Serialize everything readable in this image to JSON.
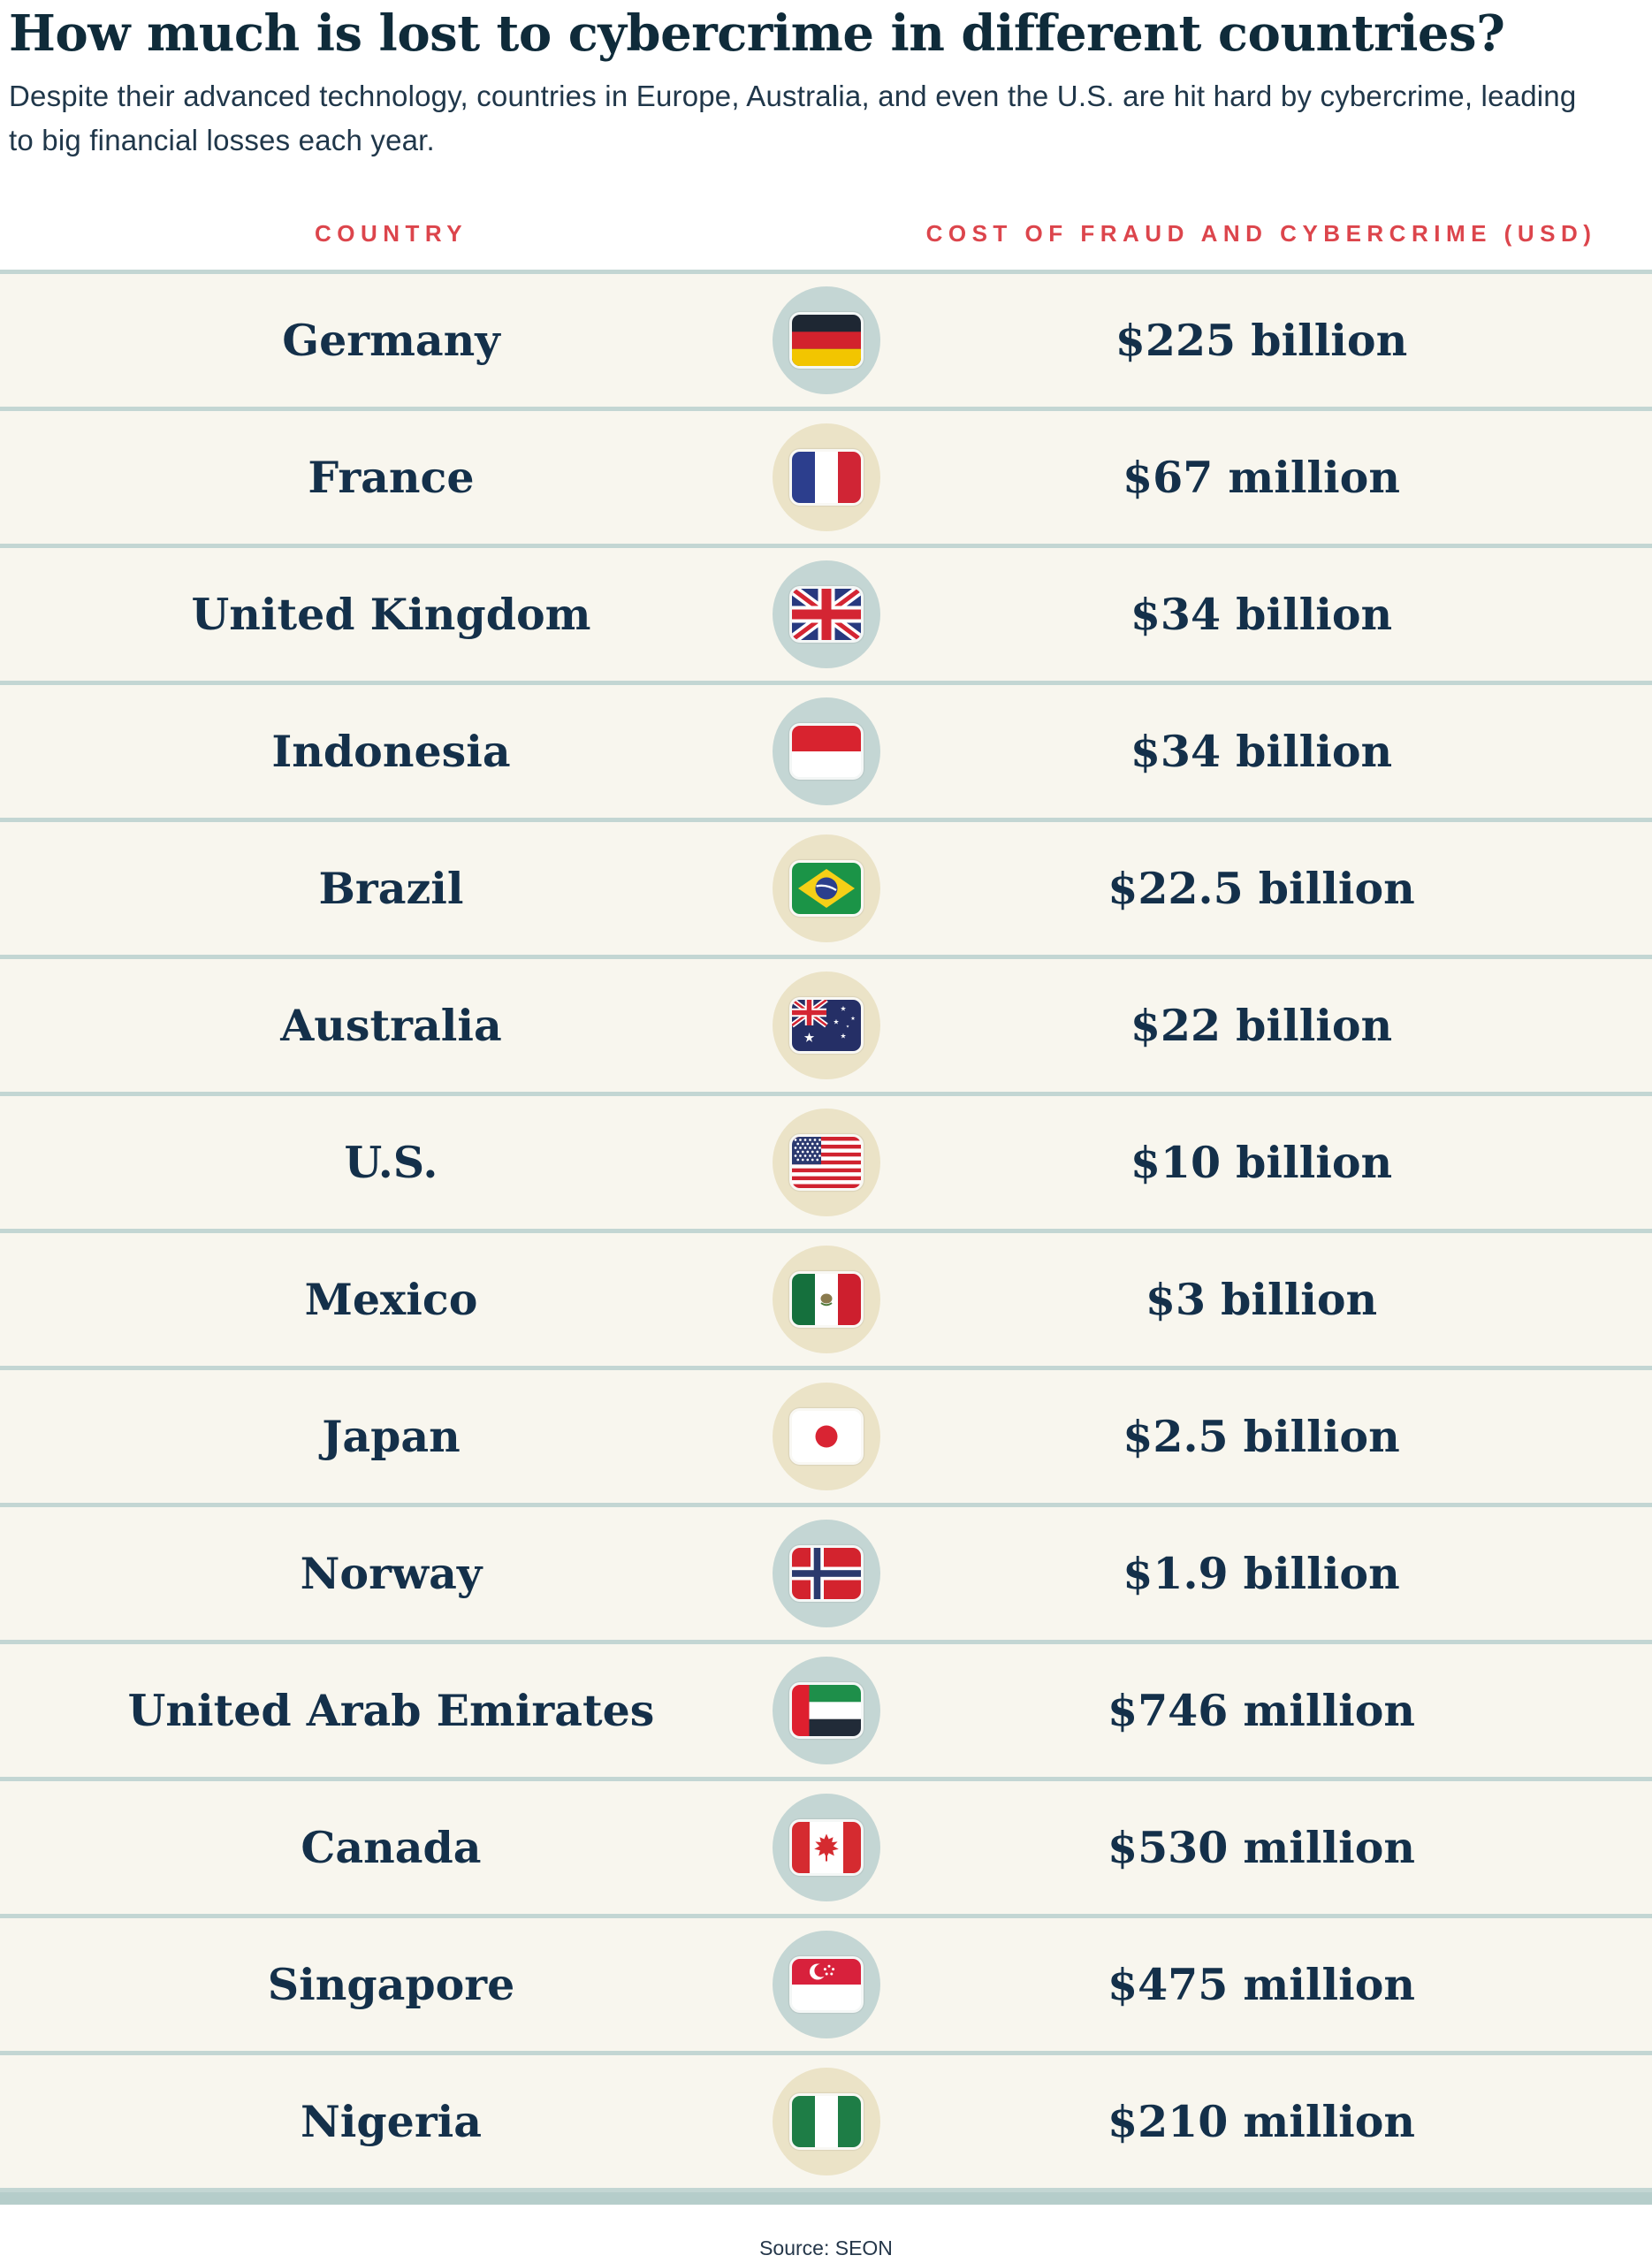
{
  "page": {
    "title": "How much is lost to cybercrime in different countries?",
    "subtitle": "Despite their advanced technology, countries in Europe, Australia, and even the U.S. are hit hard by cybercrime, leading to big financial losses each year.",
    "source": "Source: SEON"
  },
  "columns": {
    "country": "COUNTRY",
    "cost": "COST OF FRAUD AND CYBERCRIME (USD)"
  },
  "rows": [
    {
      "country": "Germany",
      "cost": "$225 billion",
      "flag": "germany-flag-icon",
      "circle": "blue"
    },
    {
      "country": "France",
      "cost": "$67 million",
      "flag": "france-flag-icon",
      "circle": "cream"
    },
    {
      "country": "United Kingdom",
      "cost": "$34 billion",
      "flag": "uk-flag-icon",
      "circle": "blue"
    },
    {
      "country": "Indonesia",
      "cost": "$34 billion",
      "flag": "indonesia-flag-icon",
      "circle": "blue"
    },
    {
      "country": "Brazil",
      "cost": "$22.5 billion",
      "flag": "brazil-flag-icon",
      "circle": "cream"
    },
    {
      "country": "Australia",
      "cost": "$22 billion",
      "flag": "australia-flag-icon",
      "circle": "cream"
    },
    {
      "country": "U.S.",
      "cost": "$10 billion",
      "flag": "us-flag-icon",
      "circle": "cream"
    },
    {
      "country": "Mexico",
      "cost": "$3 billion",
      "flag": "mexico-flag-icon",
      "circle": "cream"
    },
    {
      "country": "Japan",
      "cost": "$2.5 billion",
      "flag": "japan-flag-icon",
      "circle": "cream"
    },
    {
      "country": "Norway",
      "cost": "$1.9 billion",
      "flag": "norway-flag-icon",
      "circle": "blue"
    },
    {
      "country": "United Arab Emirates",
      "cost": "$746 million",
      "flag": "uae-flag-icon",
      "circle": "blue"
    },
    {
      "country": "Canada",
      "cost": "$530 million",
      "flag": "canada-flag-icon",
      "circle": "blue"
    },
    {
      "country": "Singapore",
      "cost": "$475 million",
      "flag": "singapore-flag-icon",
      "circle": "blue"
    },
    {
      "country": "Nigeria",
      "cost": "$210 million",
      "flag": "nigeria-flag-icon",
      "circle": "cream"
    }
  ],
  "colors": {
    "accent_red": "#dc454c",
    "title_navy": "#0f2b3a",
    "text_navy": "#14304a",
    "subtitle_navy": "#20374a",
    "row_bg": "#f8f6ee",
    "separator": "#c3d6d3",
    "bottom_bar": "#b5cdca",
    "vertical_line": "#c9dad7",
    "circle_blue": "#c4d6d4",
    "circle_cream": "#ebe3c7"
  },
  "chart_data": {
    "type": "table",
    "title": "How much is lost to cybercrime in different countries?",
    "subtitle": "Despite their advanced technology, countries in Europe, Australia, and even the U.S. are hit hard by cybercrime, leading to big financial losses each year.",
    "columns": [
      "Country",
      "Cost of fraud and cybercrime (USD)"
    ],
    "rows": [
      [
        "Germany",
        "$225 billion"
      ],
      [
        "France",
        "$67 million"
      ],
      [
        "United Kingdom",
        "$34 billion"
      ],
      [
        "Indonesia",
        "$34 billion"
      ],
      [
        "Brazil",
        "$22.5 billion"
      ],
      [
        "Australia",
        "$22 billion"
      ],
      [
        "U.S.",
        "$10 billion"
      ],
      [
        "Mexico",
        "$3 billion"
      ],
      [
        "Japan",
        "$2.5 billion"
      ],
      [
        "Norway",
        "$1.9 billion"
      ],
      [
        "United Arab Emirates",
        "$746 million"
      ],
      [
        "Canada",
        "$530 million"
      ],
      [
        "Singapore",
        "$475 million"
      ],
      [
        "Nigeria",
        "$210 million"
      ]
    ],
    "values_usd": [
      225000000000,
      67000000,
      34000000000,
      34000000000,
      22500000000,
      22000000000,
      10000000000,
      3000000000,
      2500000000,
      1900000000,
      746000000,
      530000000,
      475000000,
      210000000
    ],
    "source": "SEON"
  }
}
